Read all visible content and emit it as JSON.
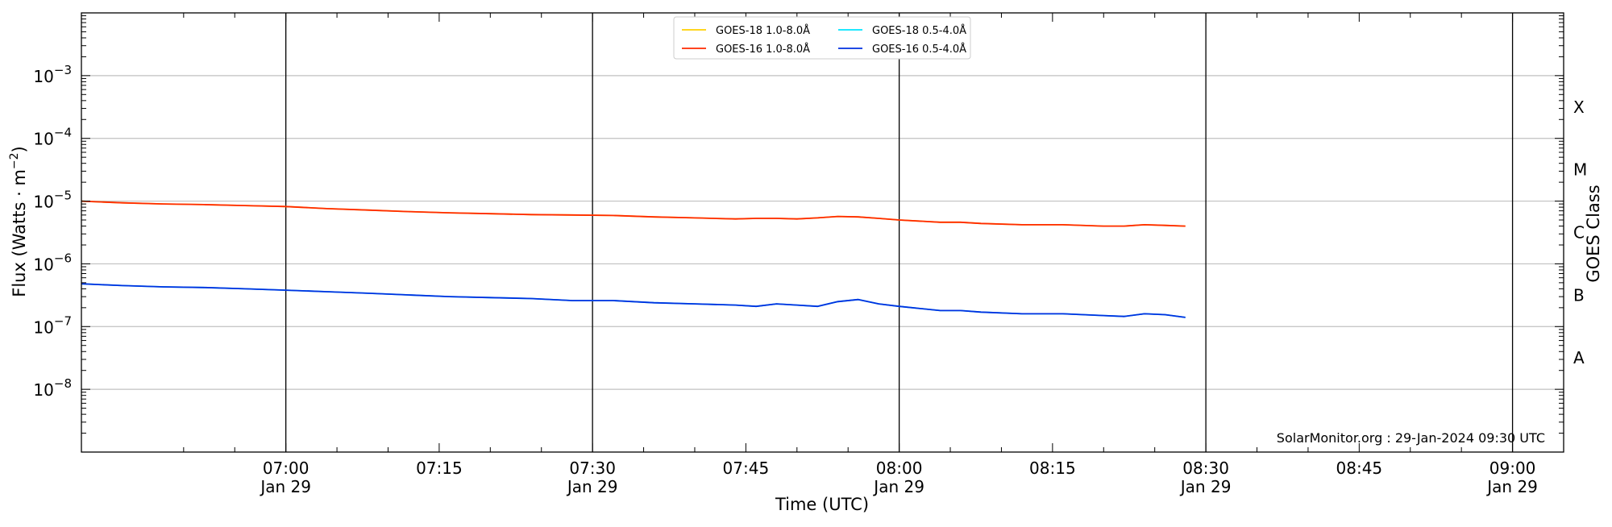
{
  "chart_data": {
    "type": "line",
    "xlabel": "Time (UTC)",
    "ylabel_right": "GOES Class",
    "x_range": [
      "06:40",
      "09:05"
    ],
    "ylim": [
      1e-09,
      0.01
    ],
    "y_scale": "log",
    "grid": "horizontal",
    "legend_placement": "top-center",
    "y_ticks": [
      {
        "value": 1e-08,
        "exp": "−8"
      },
      {
        "value": 1e-07,
        "exp": "−7"
      },
      {
        "value": 1e-06,
        "exp": "−6"
      },
      {
        "value": 1e-05,
        "exp": "−5"
      },
      {
        "value": 0.0001,
        "exp": "−4"
      },
      {
        "value": 0.001,
        "exp": "−3"
      }
    ],
    "x_ticks": [
      {
        "time": "07:00",
        "label": "07:00",
        "date": "Jan 29",
        "vline": true
      },
      {
        "time": "07:15",
        "label": "07:15",
        "date": "",
        "vline": false
      },
      {
        "time": "07:30",
        "label": "07:30",
        "date": "Jan 29",
        "vline": true
      },
      {
        "time": "07:45",
        "label": "07:45",
        "date": "",
        "vline": false
      },
      {
        "time": "08:00",
        "label": "08:00",
        "date": "Jan 29",
        "vline": true
      },
      {
        "time": "08:15",
        "label": "08:15",
        "date": "",
        "vline": false
      },
      {
        "time": "08:30",
        "label": "08:30",
        "date": "Jan 29",
        "vline": true
      },
      {
        "time": "08:45",
        "label": "08:45",
        "date": "",
        "vline": false
      },
      {
        "time": "09:00",
        "label": "09:00",
        "date": "Jan 29",
        "vline": true
      }
    ],
    "goes_classes": [
      {
        "label": "A",
        "value": 3.16e-08
      },
      {
        "label": "B",
        "value": 3.16e-07
      },
      {
        "label": "C",
        "value": 3.16e-06
      },
      {
        "label": "M",
        "value": 3.16e-05
      },
      {
        "label": "X",
        "value": 0.000316
      }
    ],
    "x": [
      "06:40",
      "06:44",
      "06:48",
      "06:52",
      "06:56",
      "07:00",
      "07:04",
      "07:08",
      "07:12",
      "07:16",
      "07:20",
      "07:24",
      "07:28",
      "07:32",
      "07:36",
      "07:40",
      "07:44",
      "07:46",
      "07:48",
      "07:50",
      "07:52",
      "07:54",
      "07:56",
      "07:58",
      "08:00",
      "08:04",
      "08:06",
      "08:08",
      "08:12",
      "08:16",
      "08:20",
      "08:22",
      "08:24",
      "08:26",
      "08:28"
    ],
    "series": [
      {
        "name": "GOES-18 1.0-8.0Å",
        "color": "#ffd000",
        "values": [
          1e-05,
          9.4e-06,
          9e-06,
          8.8e-06,
          8.5e-06,
          8.2e-06,
          7.6e-06,
          7.2e-06,
          6.8e-06,
          6.5e-06,
          6.3e-06,
          6.1e-06,
          6e-06,
          5.9e-06,
          5.6e-06,
          5.4e-06,
          5.2e-06,
          5.3e-06,
          5.3e-06,
          5.2e-06,
          5.4e-06,
          5.7e-06,
          5.6e-06,
          5.3e-06,
          5e-06,
          4.6e-06,
          4.6e-06,
          4.4e-06,
          4.2e-06,
          4.2e-06,
          4e-06,
          4e-06,
          4.2e-06,
          4.1e-06,
          4e-06
        ]
      },
      {
        "name": "GOES-16 1.0-8.0Å",
        "color": "#ff2a00",
        "values": [
          1e-05,
          9.4e-06,
          9e-06,
          8.8e-06,
          8.5e-06,
          8.2e-06,
          7.6e-06,
          7.2e-06,
          6.8e-06,
          6.5e-06,
          6.3e-06,
          6.1e-06,
          6e-06,
          5.9e-06,
          5.6e-06,
          5.4e-06,
          5.2e-06,
          5.3e-06,
          5.3e-06,
          5.2e-06,
          5.4e-06,
          5.7e-06,
          5.6e-06,
          5.3e-06,
          5e-06,
          4.6e-06,
          4.6e-06,
          4.4e-06,
          4.2e-06,
          4.2e-06,
          4e-06,
          4e-06,
          4.2e-06,
          4.1e-06,
          4e-06
        ]
      },
      {
        "name": "GOES-18 0.5-4.0Å",
        "color": "#00e5ff",
        "values": [
          4.8e-07,
          4.5e-07,
          4.3e-07,
          4.2e-07,
          4e-07,
          3.8e-07,
          3.6e-07,
          3.4e-07,
          3.2e-07,
          3e-07,
          2.9e-07,
          2.8e-07,
          2.6e-07,
          2.6e-07,
          2.4e-07,
          2.3e-07,
          2.2e-07,
          2.1e-07,
          2.3e-07,
          2.2e-07,
          2.1e-07,
          2.5e-07,
          2.7e-07,
          2.3e-07,
          2.1e-07,
          1.8e-07,
          1.8e-07,
          1.7e-07,
          1.6e-07,
          1.6e-07,
          1.5e-07,
          1.45e-07,
          1.6e-07,
          1.55e-07,
          1.4e-07
        ]
      },
      {
        "name": "GOES-16 0.5-4.0Å",
        "color": "#0030e0",
        "values": [
          4.8e-07,
          4.5e-07,
          4.3e-07,
          4.2e-07,
          4e-07,
          3.8e-07,
          3.6e-07,
          3.4e-07,
          3.2e-07,
          3e-07,
          2.9e-07,
          2.8e-07,
          2.6e-07,
          2.6e-07,
          2.4e-07,
          2.3e-07,
          2.2e-07,
          2.1e-07,
          2.3e-07,
          2.2e-07,
          2.1e-07,
          2.5e-07,
          2.7e-07,
          2.3e-07,
          2.1e-07,
          1.8e-07,
          1.8e-07,
          1.7e-07,
          1.6e-07,
          1.6e-07,
          1.5e-07,
          1.45e-07,
          1.6e-07,
          1.55e-07,
          1.4e-07
        ]
      }
    ],
    "ylabel_text": "Flux (Watts · m",
    "ylabel_exp": "−2",
    "ylabel_close": ")",
    "tick_base": "10",
    "credit": "SolarMonitor.org : 29-Jan-2024 09:30 UTC"
  }
}
